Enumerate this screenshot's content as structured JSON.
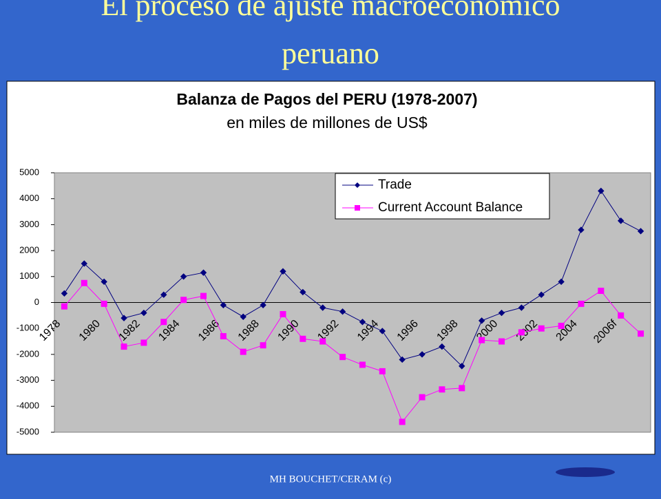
{
  "slide_title": "El proceso de ajuste macroeconomico peruano",
  "footer": "MH BOUCHET/CERAM (c)",
  "chart_data": {
    "type": "line",
    "title": "Balanza de Pagos del PERU (1978-2007)",
    "subtitle": "en miles de millones de US$",
    "categories": [
      "1978",
      null,
      "1980",
      null,
      "1982",
      null,
      "1984",
      null,
      "1986",
      null,
      "1988",
      null,
      "1990",
      null,
      "1992",
      null,
      "1994",
      null,
      "1996",
      null,
      "1998",
      null,
      "2000",
      null,
      "2002",
      null,
      "2004",
      null,
      "2006f",
      null
    ],
    "series": [
      {
        "name": "Trade",
        "color": "#000080",
        "marker": "diamond",
        "values": [
          350,
          1500,
          800,
          -600,
          -400,
          300,
          1000,
          1150,
          -100,
          -550,
          -100,
          1200,
          400,
          -200,
          -350,
          -750,
          -1100,
          -2200,
          -2000,
          -1700,
          -2450,
          -700,
          -400,
          -200,
          300,
          800,
          2800,
          4300,
          3150,
          2750
        ]
      },
      {
        "name": "Current Account Balance",
        "color": "#ff00ff",
        "marker": "square",
        "values": [
          -150,
          750,
          -50,
          -1700,
          -1550,
          -750,
          100,
          250,
          -1300,
          -1900,
          -1650,
          -450,
          -1400,
          -1500,
          -2100,
          -2400,
          -2650,
          -4600,
          -3650,
          -3350,
          -3300,
          -1450,
          -1500,
          -1150,
          -1000,
          -900,
          -50,
          450,
          -500,
          -1200
        ]
      }
    ],
    "ylim": [
      -5000,
      5000
    ],
    "yticks": [
      -5000,
      -4000,
      -3000,
      -2000,
      -1000,
      0,
      1000,
      2000,
      3000,
      4000,
      5000
    ],
    "grid": false,
    "legend": "top-right"
  }
}
